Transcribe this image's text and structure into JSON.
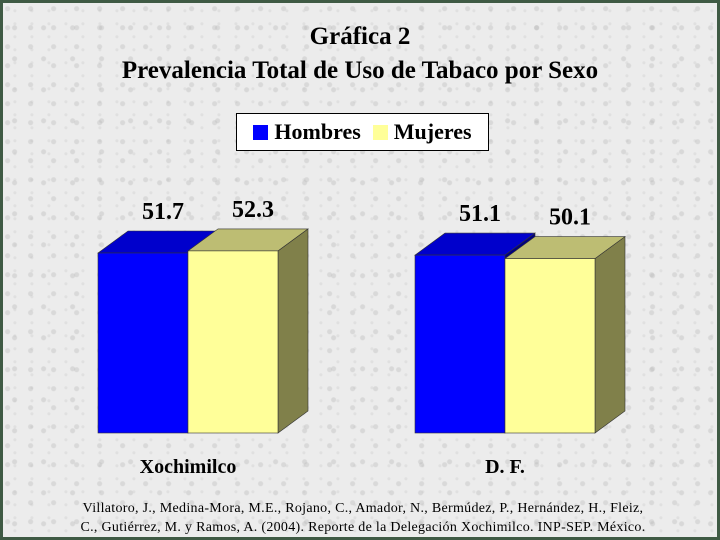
{
  "title": "Gráfica 2",
  "subtitle": "Prevalencia Total de Uso de Tabaco por Sexo",
  "citation_line1": "Villatoro, J., Medina-Mora, M.E., Rojano, C., Amador, N., Bermúdez, P., Hernández, H., Fleiz,",
  "citation_line2": "C., Gutiérrez, M. y Ramos, A. (2004). Reporte de la Delegación Xochimilco. INP-SEP. México.",
  "colors": {
    "hombres": "#0000ff",
    "mujeres": "#ffff99"
  },
  "chart_data": {
    "type": "bar",
    "title": "Gráfica 2",
    "subtitle": "Prevalencia Total de Uso de Tabaco por Sexo",
    "categories": [
      "Xochimilco",
      "D. F."
    ],
    "series": [
      {
        "name": "Hombres",
        "values": [
          51.7,
          51.1
        ]
      },
      {
        "name": "Mujeres",
        "values": [
          52.3,
          50.1
        ]
      }
    ],
    "data_labels": [
      [
        "51.7",
        "52.3"
      ],
      [
        "51.1",
        "50.1"
      ]
    ],
    "legend": "top-center",
    "grid": false,
    "style": "3d-clustered-column"
  }
}
